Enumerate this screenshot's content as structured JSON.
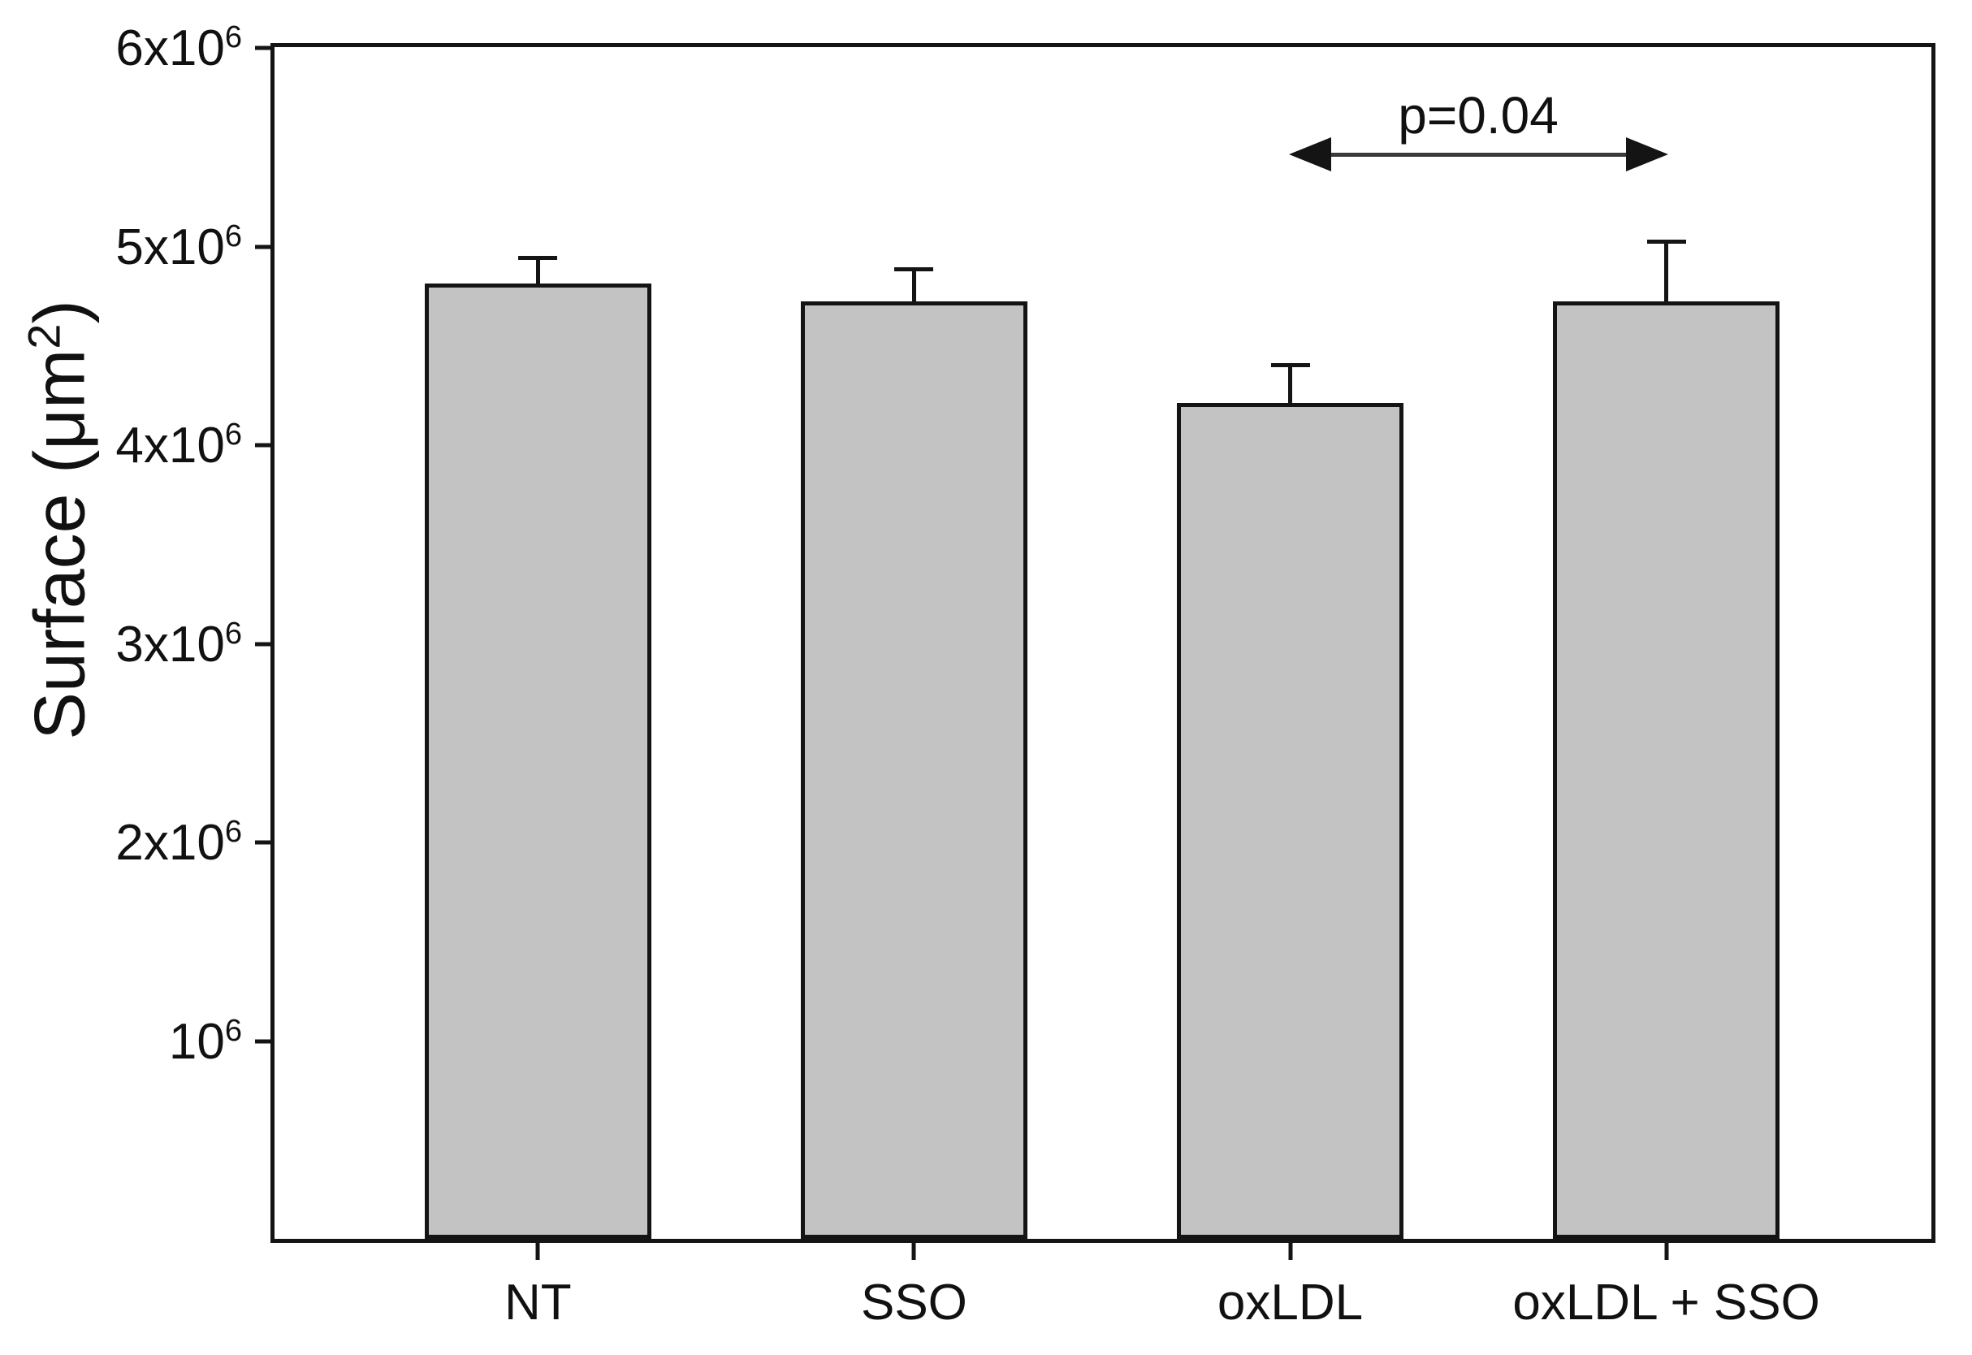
{
  "chart_data": {
    "type": "bar",
    "title": "",
    "xlabel": "",
    "ylabel": {
      "prefix": "Surface (μm",
      "sup": "2",
      "suffix": ")"
    },
    "ylim": [
      0,
      6000000
    ],
    "grid": false,
    "legend": "none",
    "categories": [
      "NT",
      "SSO",
      "oxLDL",
      "oxLDL + SSO"
    ],
    "values": [
      4810000,
      4720000,
      4210000,
      4720000
    ],
    "errors_plus": [
      130000,
      160000,
      190000,
      300000
    ],
    "bar_fill_color": "#c3c3c3",
    "bar_border_color": "#141414",
    "yticks": [
      {
        "value": 1000000,
        "base": "10",
        "sup": "6"
      },
      {
        "value": 2000000,
        "base": "2x10",
        "sup": "6"
      },
      {
        "value": 3000000,
        "base": "3x10",
        "sup": "6"
      },
      {
        "value": 4000000,
        "base": "4x10",
        "sup": "6"
      },
      {
        "value": 5000000,
        "base": "5x10",
        "sup": "6"
      },
      {
        "value": 6000000,
        "base": "6x10",
        "sup": "6"
      }
    ],
    "annotation": {
      "label": "p=0.04",
      "from_category": "oxLDL",
      "to_category": "oxLDL + SSO",
      "arrow": "double-headed"
    }
  }
}
